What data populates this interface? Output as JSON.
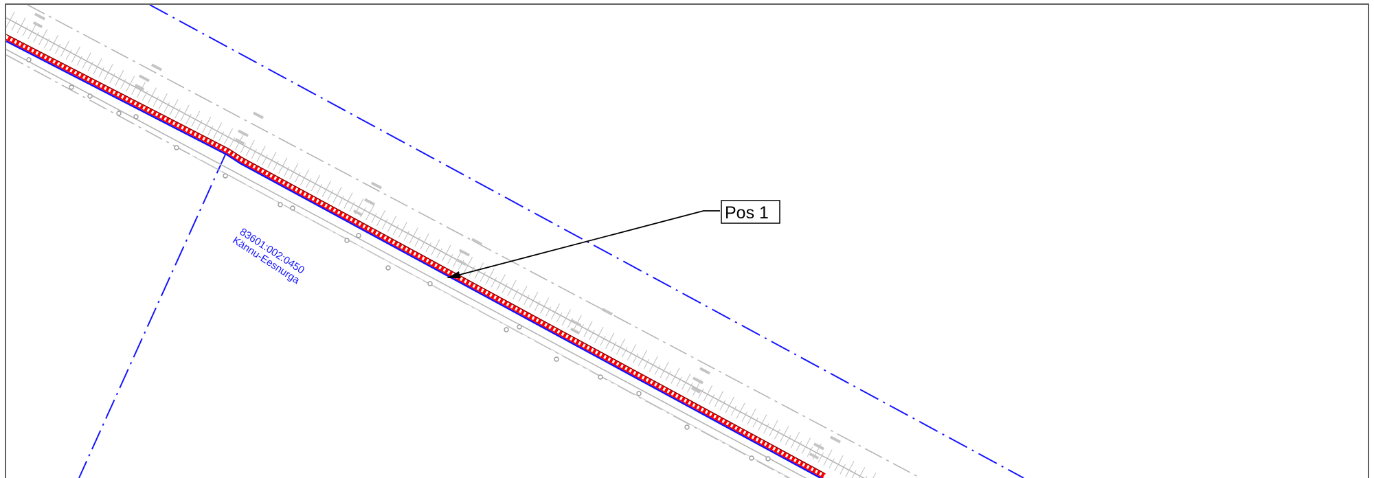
{
  "callout": {
    "label": "Pos 1"
  },
  "parcel": {
    "code": "83601:002:0450",
    "name": "Kännu-Eesnurga"
  },
  "colors": {
    "frame": "#3a3a3a",
    "parcel_boundary": "#1414ff",
    "cable_highlight": "#ff0000",
    "cable_line": "#1010ff",
    "road_lines": "#b4b4b4",
    "leader": "#000000"
  },
  "icons": {
    "arrowhead": "arrowhead-icon",
    "post": "post-circle-icon"
  }
}
